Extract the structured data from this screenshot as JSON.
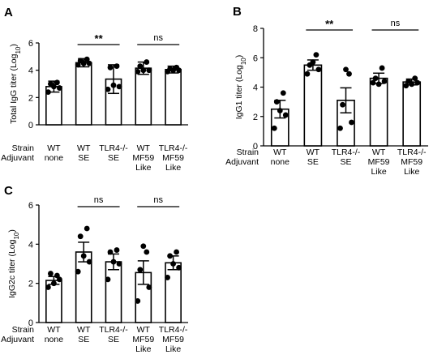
{
  "row_labels": {
    "strain": "Strain",
    "adjuvant": "Adjuvant"
  },
  "chart_data": [
    {
      "panel": "A",
      "type": "bar",
      "ylabel_main": "Total IgG titer (Log",
      "ylabel_sub": "10",
      "ylabel_end": ")",
      "ylim": [
        0,
        6
      ],
      "yticks": [
        "0",
        "2",
        "4",
        "6"
      ],
      "categories": [
        {
          "strain": "WT",
          "adjuvant": [
            "none"
          ]
        },
        {
          "strain": "WT",
          "adjuvant": [
            "SE"
          ]
        },
        {
          "strain": "TLR4-/-",
          "adjuvant": [
            "SE"
          ]
        },
        {
          "strain": "WT",
          "adjuvant": [
            "MF59",
            "Like"
          ]
        },
        {
          "strain": "TLR4-/-",
          "adjuvant": [
            "MF59",
            "Like"
          ]
        }
      ],
      "values": [
        2.8,
        4.55,
        3.35,
        4.15,
        4.05
      ],
      "errors": [
        0.4,
        0.3,
        1.05,
        0.45,
        0.25
      ],
      "points": [
        [
          2.4,
          2.7,
          3.0,
          3.1,
          2.8
        ],
        [
          4.4,
          4.5,
          4.7,
          4.8,
          4.5
        ],
        [
          2.6,
          2.8,
          4.2,
          4.3,
          2.9
        ],
        [
          3.9,
          4.0,
          4.3,
          4.6,
          4.0
        ],
        [
          3.9,
          4.0,
          4.1,
          4.2,
          4.0
        ]
      ],
      "comparisons": [
        {
          "from": 1,
          "to": 2,
          "label": "**"
        },
        {
          "from": 3,
          "to": 4,
          "label": "ns"
        }
      ]
    },
    {
      "panel": "B",
      "type": "bar",
      "ylabel_main": "IgG1 titer (Log",
      "ylabel_sub": "10",
      "ylabel_end": ")",
      "ylim": [
        0,
        8
      ],
      "yticks": [
        "0",
        "2",
        "4",
        "6",
        "8"
      ],
      "categories": [
        {
          "strain": "WT",
          "adjuvant": [
            "none"
          ]
        },
        {
          "strain": "WT",
          "adjuvant": [
            "SE"
          ]
        },
        {
          "strain": "TLR4-/-",
          "adjuvant": [
            "SE"
          ]
        },
        {
          "strain": "WT",
          "adjuvant": [
            "MF59",
            "Like"
          ]
        },
        {
          "strain": "TLR4-/-",
          "adjuvant": [
            "MF59",
            "Like"
          ]
        }
      ],
      "values": [
        2.5,
        5.5,
        3.1,
        4.6,
        4.35
      ],
      "errors": [
        0.6,
        0.35,
        0.85,
        0.35,
        0.2
      ],
      "points": [
        [
          1.2,
          2.1,
          3.0,
          3.6,
          2.4
        ],
        [
          4.9,
          5.2,
          5.5,
          6.2,
          5.7
        ],
        [
          1.2,
          1.6,
          2.8,
          4.9,
          5.2
        ],
        [
          4.3,
          4.4,
          4.6,
          5.3,
          4.2
        ],
        [
          4.1,
          4.3,
          4.4,
          4.6,
          4.2
        ]
      ],
      "comparisons": [
        {
          "from": 1,
          "to": 2,
          "label": "**"
        },
        {
          "from": 3,
          "to": 4,
          "label": "ns"
        }
      ]
    },
    {
      "panel": "C",
      "type": "bar",
      "ylabel_main": "IgG2c titer (Log",
      "ylabel_sub": "10",
      "ylabel_end": ")",
      "ylim": [
        0,
        6
      ],
      "yticks": [
        "0",
        "2",
        "4",
        "6"
      ],
      "categories": [
        {
          "strain": "WT",
          "adjuvant": [
            "none"
          ]
        },
        {
          "strain": "WT",
          "adjuvant": [
            "SE"
          ]
        },
        {
          "strain": "TLR4-/-",
          "adjuvant": [
            "SE"
          ]
        },
        {
          "strain": "WT",
          "adjuvant": [
            "MF59",
            "Like"
          ]
        },
        {
          "strain": "TLR4-/-",
          "adjuvant": [
            "MF59",
            "Like"
          ]
        }
      ],
      "values": [
        2.15,
        3.6,
        3.1,
        2.55,
        3.05
      ],
      "errors": [
        0.2,
        0.5,
        0.4,
        0.6,
        0.35
      ],
      "points": [
        [
          1.8,
          2.2,
          2.5,
          2.4,
          2.0
        ],
        [
          2.6,
          3.1,
          4.4,
          4.8,
          3.4
        ],
        [
          2.2,
          3.0,
          3.6,
          3.7,
          3.1
        ],
        [
          1.1,
          1.8,
          2.7,
          3.6,
          3.9
        ],
        [
          2.3,
          2.8,
          3.4,
          3.6,
          3.0
        ]
      ],
      "comparisons": [
        {
          "from": 1,
          "to": 2,
          "label": "ns"
        },
        {
          "from": 3,
          "to": 4,
          "label": "ns"
        }
      ]
    }
  ]
}
